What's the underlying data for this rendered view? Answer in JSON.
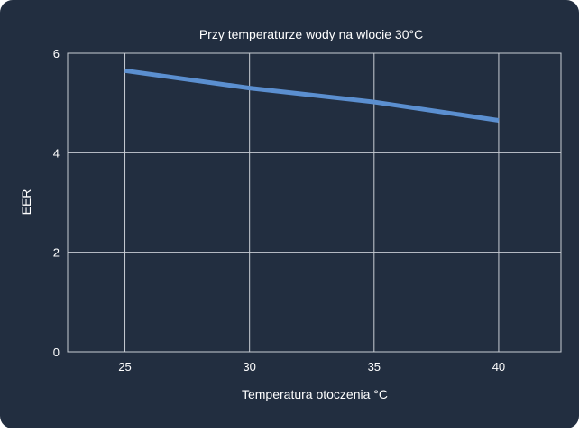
{
  "colors": {
    "background": "#222e40",
    "grid": "#c8cdd4",
    "line": "#5b8fd0",
    "text": "#ffffff"
  },
  "chart_data": {
    "type": "line",
    "title": "Przy temperaturze wody na wlocie 30°C",
    "xlabel": "Temperatura otoczenia °C",
    "ylabel": "EER",
    "x": [
      25,
      30,
      35,
      40
    ],
    "xlim": [
      22.7,
      42.5
    ],
    "ylim": [
      0,
      6
    ],
    "xticks": [
      25,
      30,
      35,
      40
    ],
    "yticks": [
      0,
      2,
      4,
      6
    ],
    "series": [
      {
        "values": [
          5.65,
          5.3,
          5.02,
          4.65
        ]
      }
    ],
    "grid": true,
    "legend": "none"
  }
}
